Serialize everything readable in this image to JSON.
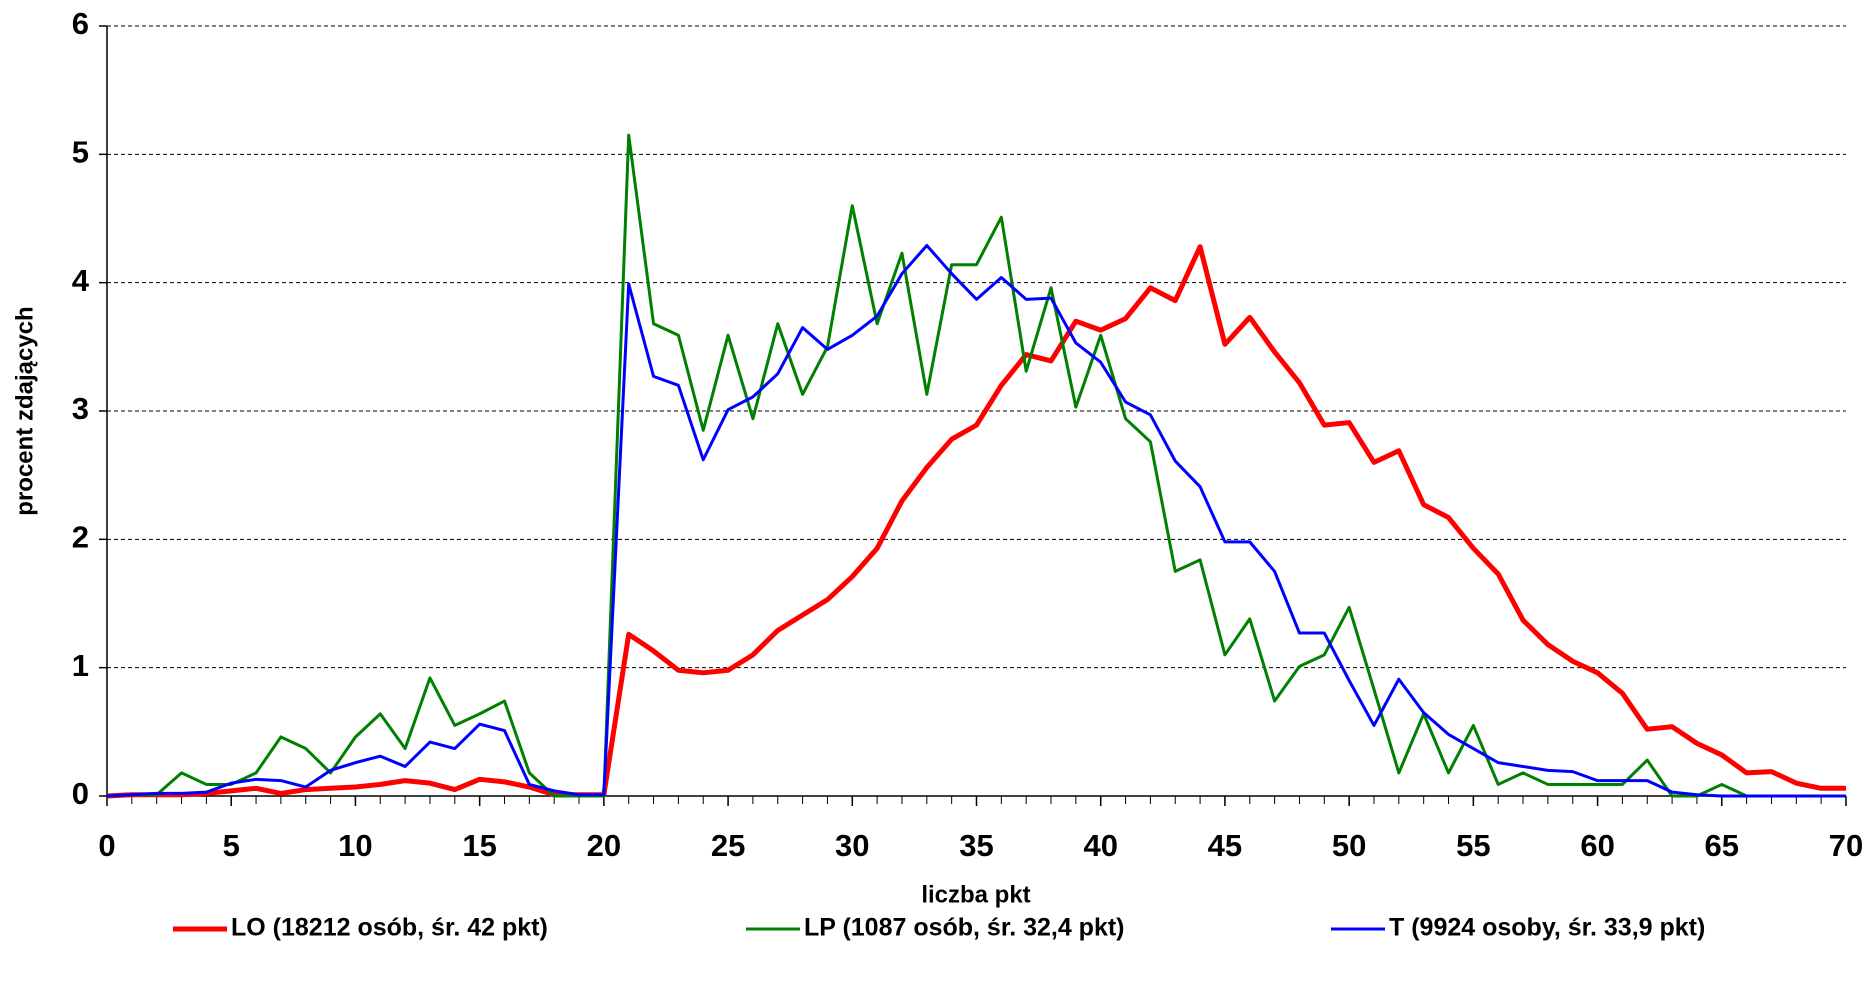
{
  "chart_data": {
    "type": "line",
    "x_label": "liczba pkt",
    "y_label": "procent zdających",
    "x": [
      0,
      1,
      2,
      3,
      4,
      5,
      6,
      7,
      8,
      9,
      10,
      11,
      12,
      13,
      14,
      15,
      16,
      17,
      18,
      19,
      20,
      21,
      22,
      23,
      24,
      25,
      26,
      27,
      28,
      29,
      30,
      31,
      32,
      33,
      34,
      35,
      36,
      37,
      38,
      39,
      40,
      41,
      42,
      43,
      44,
      45,
      46,
      47,
      48,
      49,
      50,
      51,
      52,
      53,
      54,
      55,
      56,
      57,
      58,
      59,
      60,
      61,
      62,
      63,
      64,
      65,
      66,
      67,
      68,
      69,
      70
    ],
    "series": [
      {
        "name": "LO (18212 osób, śr. 42 pkt)",
        "color": "#ff0000",
        "width": 5,
        "values": [
          0,
          0.01,
          0.01,
          0.01,
          0.02,
          0.04,
          0.06,
          0.02,
          0.05,
          0.06,
          0.07,
          0.09,
          0.12,
          0.1,
          0.05,
          0.13,
          0.11,
          0.07,
          0.01,
          0.01,
          0.01,
          1.26,
          1.13,
          0.98,
          0.96,
          0.98,
          1.1,
          1.29,
          1.41,
          1.53,
          1.71,
          1.93,
          2.3,
          2.56,
          2.78,
          2.89,
          3.2,
          3.44,
          3.39,
          3.7,
          3.63,
          3.72,
          3.96,
          3.86,
          4.28,
          3.52,
          3.73,
          3.46,
          3.22,
          2.89,
          2.91,
          2.6,
          2.69,
          2.27,
          2.17,
          1.93,
          1.73,
          1.37,
          1.18,
          1.05,
          0.96,
          0.8,
          0.52,
          0.54,
          0.41,
          0.32,
          0.18,
          0.19,
          0.1,
          0.06,
          0.06
        ]
      },
      {
        "name": "LP (1087 osób, śr. 32,4 pkt)",
        "color": "#008000",
        "width": 3,
        "values": [
          0,
          0.01,
          0.01,
          0.18,
          0.09,
          0.09,
          0.18,
          0.46,
          0.37,
          0.18,
          0.46,
          0.64,
          0.37,
          0.92,
          0.55,
          0.64,
          0.74,
          0.18,
          0,
          0,
          0,
          5.15,
          3.68,
          3.59,
          2.85,
          3.59,
          2.94,
          3.68,
          3.13,
          3.5,
          4.6,
          3.68,
          4.23,
          3.13,
          4.14,
          4.14,
          4.51,
          3.31,
          3.96,
          3.03,
          3.59,
          2.94,
          2.76,
          1.75,
          1.84,
          1.1,
          1.38,
          0.74,
          1.01,
          1.1,
          1.47,
          0.83,
          0.18,
          0.64,
          0.18,
          0.55,
          0.09,
          0.18,
          0.09,
          0.09,
          0.09,
          0.09,
          0.28,
          0,
          0,
          0.09,
          0,
          0,
          0,
          0,
          0
        ]
      },
      {
        "name": "T (9924 osoby, śr. 33,9 pkt)",
        "color": "#0000ff",
        "width": 3,
        "values": [
          0,
          0.01,
          0.02,
          0.02,
          0.03,
          0.1,
          0.13,
          0.12,
          0.07,
          0.2,
          0.26,
          0.31,
          0.23,
          0.42,
          0.37,
          0.56,
          0.51,
          0.09,
          0.04,
          0.01,
          0.01,
          3.99,
          3.27,
          3.2,
          2.62,
          3.01,
          3.11,
          3.29,
          3.65,
          3.48,
          3.59,
          3.74,
          4.07,
          4.29,
          4.07,
          3.87,
          4.04,
          3.87,
          3.88,
          3.53,
          3.38,
          3.07,
          2.97,
          2.61,
          2.41,
          1.98,
          1.98,
          1.75,
          1.27,
          1.27,
          0.9,
          0.55,
          0.91,
          0.65,
          0.48,
          0.37,
          0.26,
          0.23,
          0.2,
          0.19,
          0.12,
          0.12,
          0.12,
          0.03,
          0.01,
          0,
          0,
          0,
          0,
          0,
          0
        ]
      }
    ],
    "xlim": [
      0,
      70
    ],
    "xticks": [
      0,
      5,
      10,
      15,
      20,
      25,
      30,
      35,
      40,
      45,
      50,
      55,
      60,
      65,
      70
    ],
    "ylim": [
      0,
      6
    ],
    "yticks": [
      0,
      1,
      2,
      3,
      4,
      5,
      6
    ],
    "grid": true,
    "legend": "bottom"
  }
}
